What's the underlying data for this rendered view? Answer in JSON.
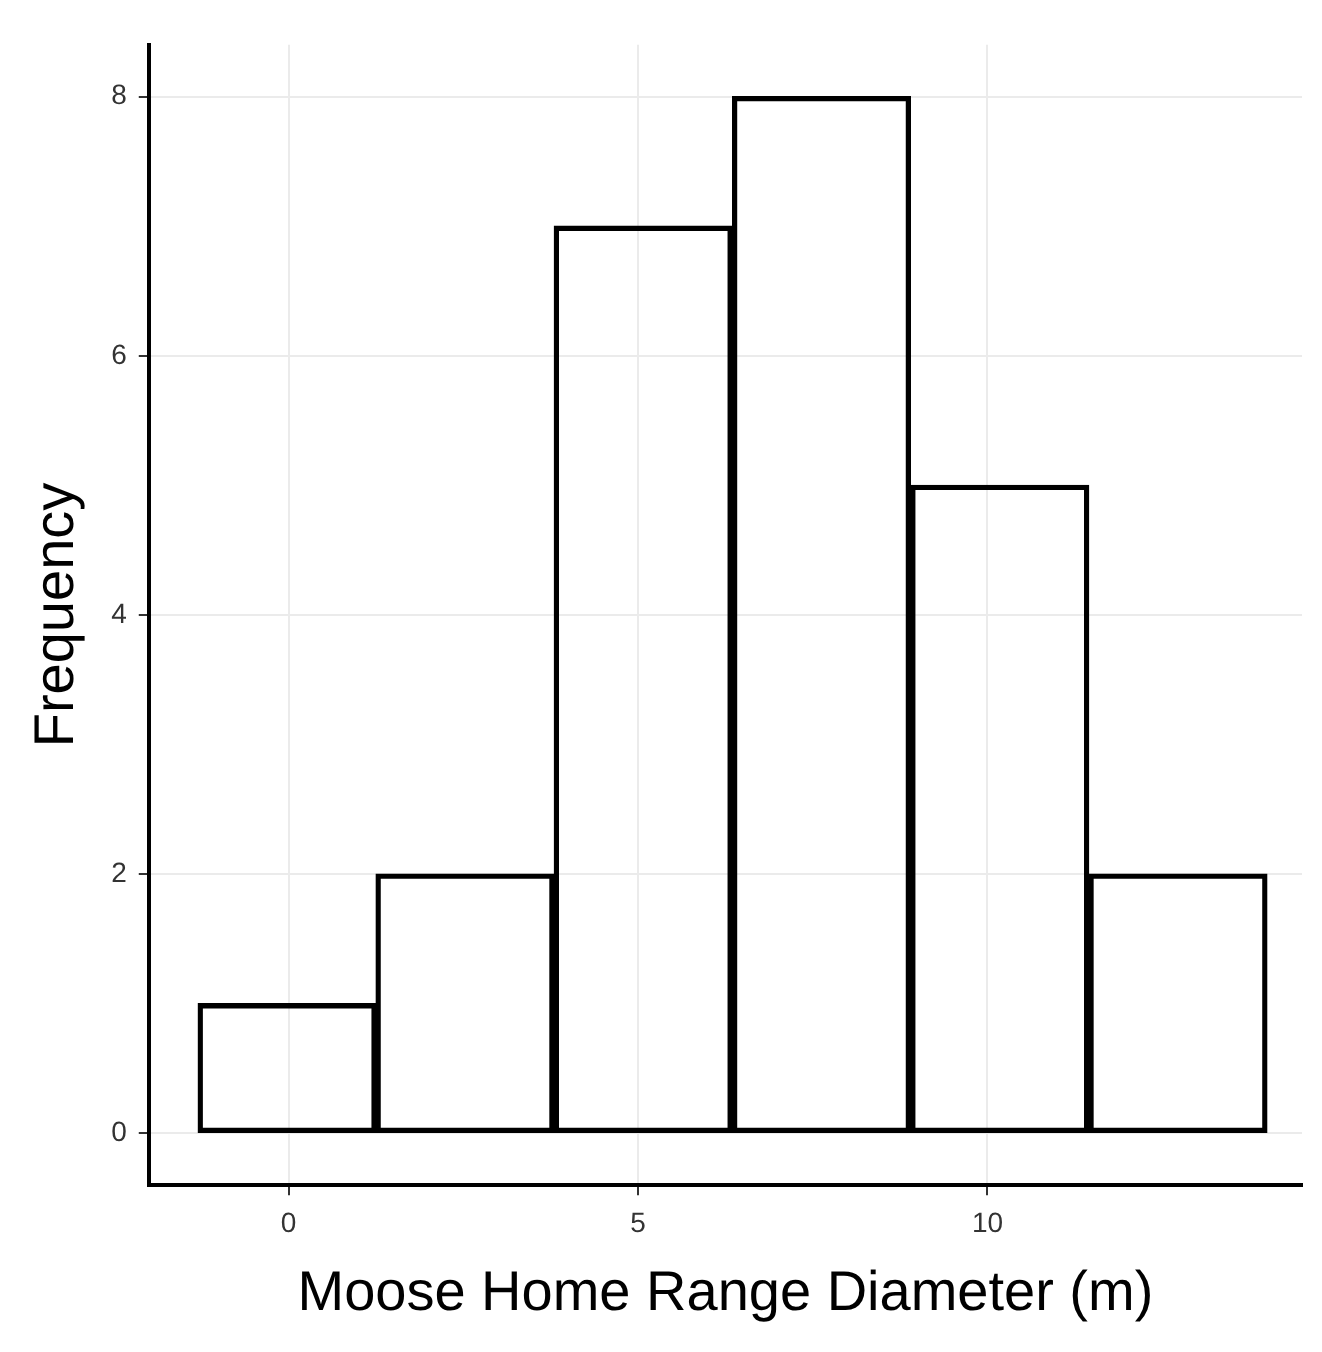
{
  "chart_data": {
    "type": "histogram",
    "xlabel": "Moose Home Range Diameter (m)",
    "ylabel": "Frequency",
    "bins": [
      -1.29,
      1.25,
      3.8,
      6.35,
      8.9,
      11.45,
      14.0
    ],
    "values": [
      1,
      2,
      7,
      8,
      5,
      2
    ],
    "color": "#000000",
    "xlim": [
      -2.0,
      14.5
    ],
    "xticks": [
      0,
      5,
      10
    ],
    "ylim": [
      -0.4,
      8.4
    ],
    "yticks": [
      0,
      2,
      4,
      6,
      8
    ],
    "grid": true,
    "legend": false
  }
}
